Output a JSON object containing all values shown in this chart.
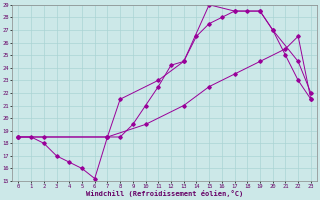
{
  "xlabel": "Windchill (Refroidissement éolien,°C)",
  "xlim": [
    -0.5,
    23.5
  ],
  "ylim": [
    15,
    29
  ],
  "yticks": [
    15,
    16,
    17,
    18,
    19,
    20,
    21,
    22,
    23,
    24,
    25,
    26,
    27,
    28,
    29
  ],
  "xticks": [
    0,
    1,
    2,
    3,
    4,
    5,
    6,
    7,
    8,
    9,
    10,
    11,
    12,
    13,
    14,
    15,
    16,
    17,
    18,
    19,
    20,
    21,
    22,
    23
  ],
  "bg_color": "#cce8e8",
  "line_color": "#990099",
  "grid_color": "#aad4d4",
  "series": [
    {
      "x": [
        0,
        1,
        2,
        3,
        4,
        5,
        6,
        7,
        8,
        9,
        10,
        11,
        12,
        13,
        14,
        15,
        16,
        17,
        18,
        19,
        20,
        21,
        22,
        23
      ],
      "y": [
        18.5,
        18.5,
        18.0,
        17.0,
        16.5,
        16.0,
        15.2,
        18.5,
        18.5,
        19.5,
        21.0,
        22.5,
        24.2,
        24.5,
        26.5,
        27.5,
        28.0,
        28.5,
        28.5,
        28.5,
        27.0,
        25.0,
        23.0,
        21.5
      ]
    },
    {
      "x": [
        0,
        2,
        7,
        8,
        11,
        13,
        15,
        17,
        19,
        20,
        22,
        23
      ],
      "y": [
        18.5,
        18.5,
        18.5,
        21.5,
        23.0,
        24.5,
        29.0,
        28.5,
        28.5,
        27.0,
        24.5,
        22.0
      ]
    },
    {
      "x": [
        0,
        7,
        10,
        13,
        15,
        17,
        19,
        21,
        22,
        23
      ],
      "y": [
        18.5,
        18.5,
        19.5,
        21.0,
        22.5,
        23.5,
        24.5,
        25.5,
        26.5,
        21.5
      ]
    }
  ]
}
